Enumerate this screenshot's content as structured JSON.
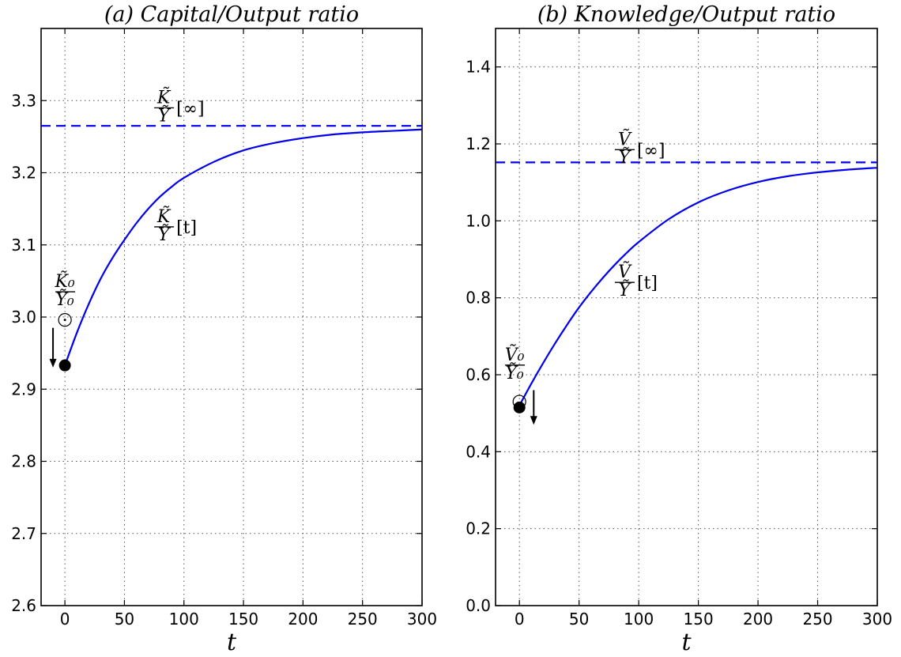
{
  "chart_data": [
    {
      "type": "line",
      "title": "(a) Capital/Output ratio",
      "xlabel": "t",
      "ylabel": "",
      "xlim": [
        -20,
        300
      ],
      "ylim": [
        2.6,
        3.4
      ],
      "xticks": [
        0,
        50,
        100,
        150,
        200,
        250,
        300
      ],
      "yticks": [
        2.6,
        2.7,
        2.8,
        2.9,
        3.0,
        3.1,
        3.2,
        3.3
      ],
      "xtick_labels": [
        "0",
        "50",
        "100",
        "150",
        "200",
        "250",
        "300"
      ],
      "ytick_labels": [
        "2.6",
        "2.7",
        "2.8",
        "2.9",
        "3.0",
        "3.1",
        "3.2",
        "3.3"
      ],
      "grid": true,
      "color": "#0000ee",
      "series": [
        {
          "style": "solid",
          "x": [
            0,
            10,
            20,
            30,
            40,
            50,
            60,
            70,
            80,
            90,
            100,
            125,
            150,
            175,
            200,
            225,
            250,
            275,
            300
          ],
          "y": [
            2.933,
            2.978,
            3.018,
            3.053,
            3.082,
            3.107,
            3.13,
            3.15,
            3.167,
            3.181,
            3.193,
            3.215,
            3.231,
            3.241,
            3.248,
            3.253,
            3.256,
            3.258,
            3.26
          ]
        },
        {
          "style": "dashed",
          "x": [
            -20,
            300
          ],
          "y": [
            3.265,
            3.265
          ]
        }
      ],
      "points": {
        "filled": {
          "x": 0,
          "y": 2.933
        },
        "open": {
          "x": 0,
          "y": 2.996
        }
      },
      "arrow": {
        "x": -10,
        "y_from": 2.985,
        "y_to": 2.93
      },
      "annotations": [
        {
          "x": 75,
          "y": 3.29,
          "top": "K̃",
          "bottom": "Ỹ",
          "suffix": "[∞]"
        },
        {
          "x": 75,
          "y": 3.125,
          "top": "K̃",
          "bottom": "Ỹ",
          "suffix": "[t]"
        },
        {
          "x": -8,
          "y": 3.035,
          "top": "K̃₀",
          "bottom": "Ỹ₀",
          "suffix": ""
        }
      ]
    },
    {
      "type": "line",
      "title": "(b) Knowledge/Output ratio",
      "xlabel": "t",
      "ylabel": "",
      "xlim": [
        -20,
        300
      ],
      "ylim": [
        0.0,
        1.5
      ],
      "xticks": [
        0,
        50,
        100,
        150,
        200,
        250,
        300
      ],
      "yticks": [
        0.0,
        0.2,
        0.4,
        0.6,
        0.8,
        1.0,
        1.2,
        1.4
      ],
      "xtick_labels": [
        "0",
        "50",
        "100",
        "150",
        "200",
        "250",
        "300"
      ],
      "ytick_labels": [
        "0.0",
        "0.2",
        "0.4",
        "0.6",
        "0.8",
        "1.0",
        "1.2",
        "1.4"
      ],
      "grid": true,
      "color": "#0000ee",
      "series": [
        {
          "style": "solid",
          "x": [
            0,
            10,
            20,
            30,
            40,
            50,
            60,
            70,
            80,
            90,
            100,
            125,
            150,
            175,
            200,
            225,
            250,
            275,
            300
          ],
          "y": [
            0.52,
            0.577,
            0.631,
            0.682,
            0.73,
            0.775,
            0.815,
            0.852,
            0.886,
            0.917,
            0.945,
            1.004,
            1.048,
            1.079,
            1.101,
            1.116,
            1.126,
            1.133,
            1.138
          ]
        },
        {
          "style": "dashed",
          "x": [
            -20,
            300
          ],
          "y": [
            1.152,
            1.152
          ]
        }
      ],
      "points": {
        "filled": {
          "x": 0,
          "y": 0.515
        },
        "open": {
          "x": 0,
          "y": 0.53
        }
      },
      "arrow": {
        "x": 12,
        "y_from": 0.56,
        "y_to": 0.47
      },
      "annotations": [
        {
          "x": 80,
          "y": 1.185,
          "top": "Ṽ",
          "bottom": "Ỹ",
          "suffix": "[∞]"
        },
        {
          "x": 80,
          "y": 0.84,
          "top": "Ṽ",
          "bottom": "Ỹ",
          "suffix": "[t]"
        },
        {
          "x": -12,
          "y": 0.625,
          "top": "Ṽ₀",
          "bottom": "Ỹ₀",
          "suffix": ""
        }
      ]
    }
  ]
}
